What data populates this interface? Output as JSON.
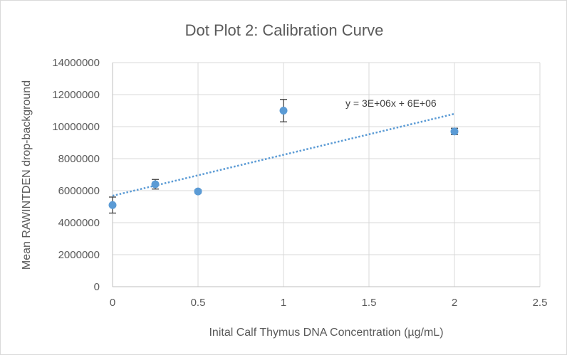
{
  "chart_data": {
    "type": "scatter",
    "title": "Dot Plot 2: Calibration Curve",
    "xlabel": "Inital Calf Thymus DNA Concentration (µg/mL)",
    "ylabel": "Mean RAWINTDEN drop-background",
    "xlim": [
      0,
      2.5
    ],
    "ylim": [
      0,
      14000000
    ],
    "x_ticks": [
      0,
      0.5,
      1,
      1.5,
      2,
      2.5
    ],
    "x_tick_labels": [
      "0",
      "0.5",
      "1",
      "1.5",
      "2",
      "2.5"
    ],
    "y_ticks": [
      0,
      2000000,
      4000000,
      6000000,
      8000000,
      10000000,
      12000000,
      14000000
    ],
    "y_tick_labels": [
      "0",
      "2000000",
      "4000000",
      "6000000",
      "8000000",
      "10000000",
      "12000000",
      "14000000"
    ],
    "grid": true,
    "marker_color": "#5b9bd5",
    "series": [
      {
        "name": "Mean RAWINTDEN",
        "x": [
          0,
          0.25,
          0.5,
          1,
          2
        ],
        "y": [
          5100000,
          6400000,
          5950000,
          11000000,
          9700000
        ],
        "error": [
          500000,
          300000,
          100000,
          700000,
          200000
        ]
      }
    ],
    "trendline": {
      "type": "linear",
      "label": "y = 3E+06x + 6E+06",
      "slope": 2560000,
      "intercept": 5680000,
      "x_range": [
        0,
        2
      ],
      "color": "#5b9bd5"
    }
  }
}
